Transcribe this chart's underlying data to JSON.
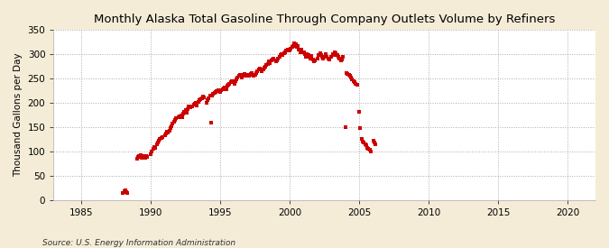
{
  "title": "Monthly Alaska Total Gasoline Through Company Outlets Volume by Refiners",
  "ylabel": "Thousand Gallons per Day",
  "source": "Source: U.S. Energy Information Administration",
  "xlim": [
    1983,
    2022
  ],
  "ylim": [
    0,
    350
  ],
  "xticks": [
    1985,
    1990,
    1995,
    2000,
    2005,
    2010,
    2015,
    2020
  ],
  "yticks": [
    0,
    50,
    100,
    150,
    200,
    250,
    300,
    350
  ],
  "outer_bg": "#f5ecd7",
  "plot_bg": "#ffffff",
  "marker_color": "#cc0000",
  "marker_size": 5,
  "data": [
    [
      1988.0,
      15
    ],
    [
      1988.08,
      18
    ],
    [
      1988.17,
      20
    ],
    [
      1988.25,
      17
    ],
    [
      1988.33,
      14
    ],
    [
      1989.0,
      85
    ],
    [
      1989.08,
      88
    ],
    [
      1989.17,
      90
    ],
    [
      1989.25,
      92
    ],
    [
      1989.33,
      87
    ],
    [
      1989.42,
      89
    ],
    [
      1989.5,
      91
    ],
    [
      1989.58,
      86
    ],
    [
      1989.67,
      90
    ],
    [
      1989.75,
      88
    ],
    [
      1990.0,
      95
    ],
    [
      1990.08,
      100
    ],
    [
      1990.17,
      105
    ],
    [
      1990.25,
      110
    ],
    [
      1990.33,
      107
    ],
    [
      1990.42,
      115
    ],
    [
      1990.5,
      118
    ],
    [
      1990.58,
      122
    ],
    [
      1990.67,
      125
    ],
    [
      1990.75,
      128
    ],
    [
      1990.83,
      130
    ],
    [
      1991.0,
      133
    ],
    [
      1991.08,
      137
    ],
    [
      1991.17,
      140
    ],
    [
      1991.25,
      138
    ],
    [
      1991.33,
      143
    ],
    [
      1991.42,
      148
    ],
    [
      1991.5,
      152
    ],
    [
      1991.58,
      158
    ],
    [
      1991.67,
      162
    ],
    [
      1991.75,
      165
    ],
    [
      1991.83,
      168
    ],
    [
      1992.0,
      170
    ],
    [
      1992.08,
      173
    ],
    [
      1992.17,
      175
    ],
    [
      1992.25,
      170
    ],
    [
      1992.33,
      178
    ],
    [
      1992.42,
      182
    ],
    [
      1992.5,
      185
    ],
    [
      1992.58,
      180
    ],
    [
      1992.67,
      188
    ],
    [
      1992.75,
      192
    ],
    [
      1992.83,
      190
    ],
    [
      1993.0,
      193
    ],
    [
      1993.08,
      196
    ],
    [
      1993.17,
      198
    ],
    [
      1993.25,
      200
    ],
    [
      1993.33,
      195
    ],
    [
      1993.42,
      202
    ],
    [
      1993.5,
      205
    ],
    [
      1993.58,
      208
    ],
    [
      1993.67,
      210
    ],
    [
      1993.75,
      213
    ],
    [
      1993.83,
      212
    ],
    [
      1994.0,
      200
    ],
    [
      1994.08,
      205
    ],
    [
      1994.17,
      210
    ],
    [
      1994.25,
      215
    ],
    [
      1994.33,
      160
    ],
    [
      1994.42,
      215
    ],
    [
      1994.5,
      218
    ],
    [
      1994.58,
      220
    ],
    [
      1994.67,
      222
    ],
    [
      1994.75,
      225
    ],
    [
      1994.83,
      227
    ],
    [
      1995.0,
      222
    ],
    [
      1995.08,
      226
    ],
    [
      1995.17,
      228
    ],
    [
      1995.25,
      230
    ],
    [
      1995.33,
      232
    ],
    [
      1995.42,
      228
    ],
    [
      1995.5,
      235
    ],
    [
      1995.58,
      238
    ],
    [
      1995.67,
      240
    ],
    [
      1995.75,
      242
    ],
    [
      1995.83,
      245
    ],
    [
      1996.0,
      240
    ],
    [
      1996.08,
      244
    ],
    [
      1996.17,
      248
    ],
    [
      1996.25,
      252
    ],
    [
      1996.33,
      255
    ],
    [
      1996.42,
      258
    ],
    [
      1996.5,
      255
    ],
    [
      1996.58,
      252
    ],
    [
      1996.67,
      258
    ],
    [
      1996.75,
      260
    ],
    [
      1996.83,
      255
    ],
    [
      1997.0,
      258
    ],
    [
      1997.08,
      255
    ],
    [
      1997.17,
      260
    ],
    [
      1997.25,
      262
    ],
    [
      1997.33,
      258
    ],
    [
      1997.42,
      255
    ],
    [
      1997.5,
      258
    ],
    [
      1997.58,
      262
    ],
    [
      1997.67,
      265
    ],
    [
      1997.75,
      268
    ],
    [
      1997.83,
      270
    ],
    [
      1998.0,
      265
    ],
    [
      1998.08,
      268
    ],
    [
      1998.17,
      272
    ],
    [
      1998.25,
      275
    ],
    [
      1998.33,
      278
    ],
    [
      1998.42,
      280
    ],
    [
      1998.5,
      285
    ],
    [
      1998.58,
      282
    ],
    [
      1998.67,
      288
    ],
    [
      1998.75,
      290
    ],
    [
      1998.83,
      292
    ],
    [
      1999.0,
      285
    ],
    [
      1999.08,
      288
    ],
    [
      1999.17,
      292
    ],
    [
      1999.25,
      295
    ],
    [
      1999.33,
      298
    ],
    [
      1999.42,
      300
    ],
    [
      1999.5,
      298
    ],
    [
      1999.58,
      302
    ],
    [
      1999.67,
      305
    ],
    [
      1999.75,
      308
    ],
    [
      1999.83,
      310
    ],
    [
      2000.0,
      308
    ],
    [
      2000.08,
      312
    ],
    [
      2000.17,
      315
    ],
    [
      2000.25,
      318
    ],
    [
      2000.33,
      322
    ],
    [
      2000.42,
      320
    ],
    [
      2000.5,
      315
    ],
    [
      2000.58,
      318
    ],
    [
      2000.67,
      310
    ],
    [
      2000.75,
      305
    ],
    [
      2000.83,
      310
    ],
    [
      2001.0,
      305
    ],
    [
      2001.08,
      300
    ],
    [
      2001.17,
      295
    ],
    [
      2001.25,
      300
    ],
    [
      2001.33,
      298
    ],
    [
      2001.42,
      295
    ],
    [
      2001.5,
      292
    ],
    [
      2001.58,
      296
    ],
    [
      2001.67,
      290
    ],
    [
      2001.75,
      285
    ],
    [
      2001.83,
      288
    ],
    [
      2002.0,
      292
    ],
    [
      2002.08,
      298
    ],
    [
      2002.17,
      302
    ],
    [
      2002.25,
      298
    ],
    [
      2002.33,
      295
    ],
    [
      2002.42,
      292
    ],
    [
      2002.5,
      295
    ],
    [
      2002.58,
      300
    ],
    [
      2002.67,
      295
    ],
    [
      2002.75,
      292
    ],
    [
      2002.83,
      290
    ],
    [
      2003.0,
      295
    ],
    [
      2003.08,
      300
    ],
    [
      2003.17,
      298
    ],
    [
      2003.25,
      305
    ],
    [
      2003.33,
      302
    ],
    [
      2003.42,
      298
    ],
    [
      2003.5,
      295
    ],
    [
      2003.58,
      292
    ],
    [
      2003.67,
      288
    ],
    [
      2003.75,
      290
    ],
    [
      2003.83,
      295
    ],
    [
      2004.0,
      150
    ],
    [
      2004.08,
      262
    ],
    [
      2004.17,
      260
    ],
    [
      2004.25,
      258
    ],
    [
      2004.33,
      255
    ],
    [
      2004.42,
      252
    ],
    [
      2004.5,
      248
    ],
    [
      2004.58,
      245
    ],
    [
      2004.67,
      242
    ],
    [
      2004.75,
      240
    ],
    [
      2004.83,
      238
    ],
    [
      2005.0,
      182
    ],
    [
      2005.08,
      148
    ],
    [
      2005.17,
      125
    ],
    [
      2005.25,
      120
    ],
    [
      2005.33,
      118
    ],
    [
      2005.42,
      115
    ],
    [
      2005.5,
      112
    ],
    [
      2005.58,
      108
    ],
    [
      2005.67,
      105
    ],
    [
      2005.75,
      103
    ],
    [
      2005.83,
      100
    ],
    [
      2006.0,
      122
    ],
    [
      2006.08,
      118
    ],
    [
      2006.17,
      115
    ]
  ]
}
